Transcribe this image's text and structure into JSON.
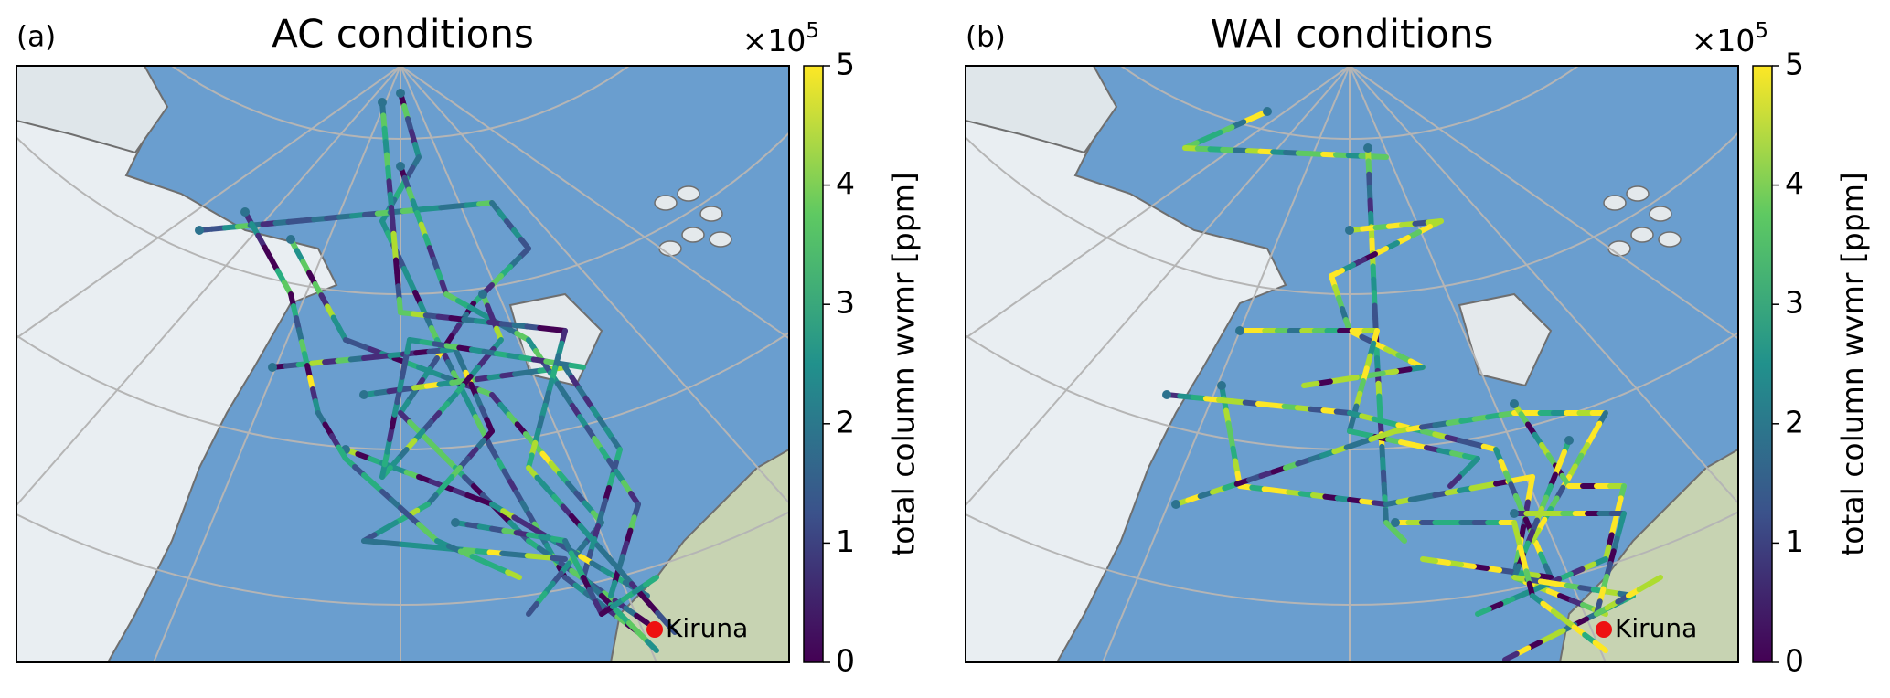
{
  "panels": [
    {
      "label": "(a)",
      "title": "AC conditions",
      "place": "Kiruna",
      "colorbar": {
        "label": "total column wvmr [ppm]",
        "multiplier": {
          "base": "×10",
          "exponent": "5"
        },
        "lim": [
          0,
          5
        ],
        "ticks": [
          0,
          1,
          2,
          3,
          4,
          5
        ]
      }
    },
    {
      "label": "(b)",
      "title": "WAI conditions",
      "place": "Kiruna",
      "colorbar": {
        "label": "total column wvmr [ppm]",
        "multiplier": {
          "base": "×10",
          "exponent": "5"
        },
        "lim": [
          0,
          5
        ],
        "ticks": [
          0,
          1,
          2,
          3,
          4,
          5
        ]
      }
    }
  ]
}
